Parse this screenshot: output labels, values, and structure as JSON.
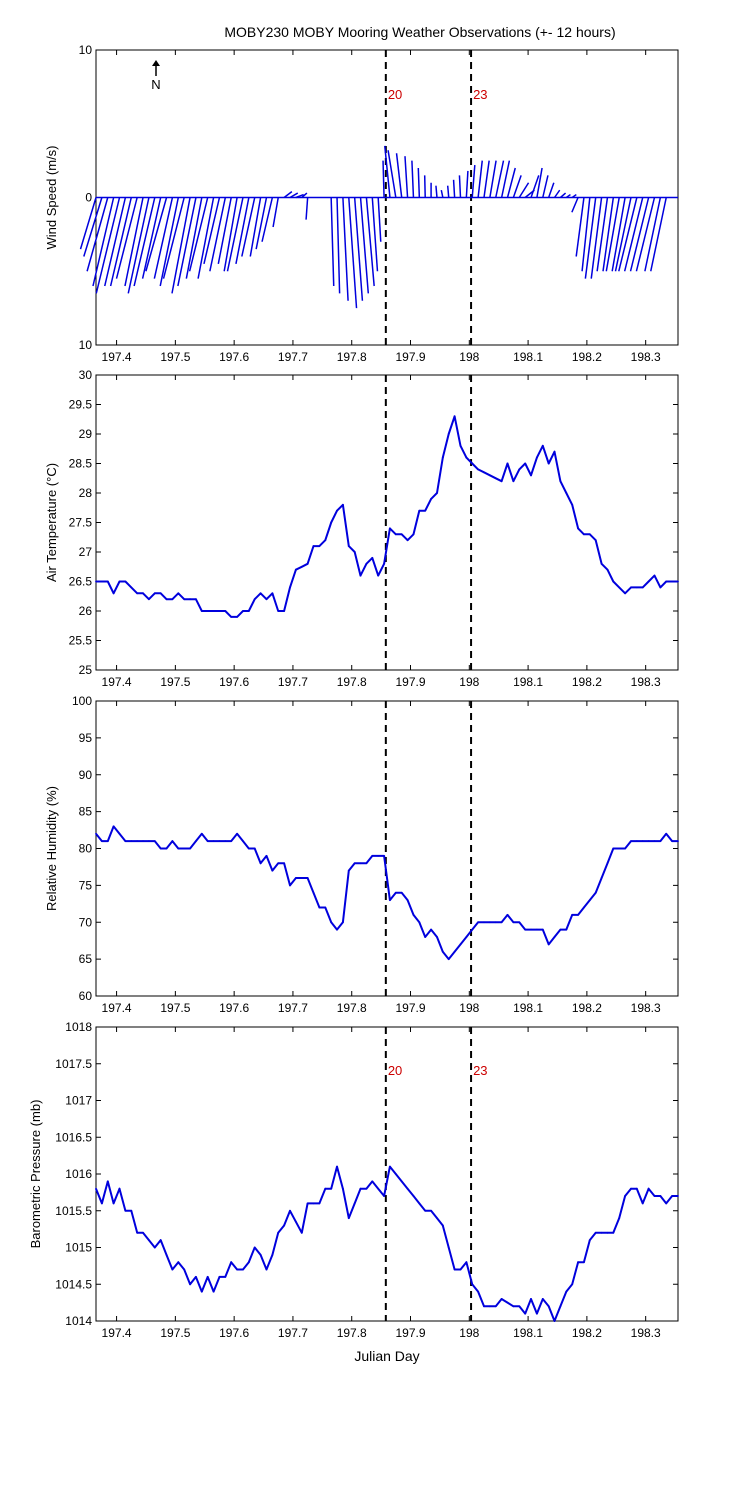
{
  "title": "MOBY230 MOBY Mooring Weather Observations (+- 12 hours)",
  "xlabel": "Julian Day",
  "x_ticks": [
    197.4,
    197.5,
    197.6,
    197.7,
    197.8,
    197.9,
    198,
    198.1,
    198.2,
    198.3
  ],
  "xlim": [
    197.365,
    198.355
  ],
  "markers": [
    {
      "x": 197.858,
      "label": "20"
    },
    {
      "x": 198.003,
      "label": "23"
    }
  ],
  "north_label": "N",
  "colors": {
    "line": "#0000dd",
    "marker_label": "#cc0000",
    "axis": "#000000"
  },
  "chart_data": [
    {
      "type": "vector",
      "title": "MOBY230 MOBY Mooring Weather Observations (+- 12 hours)",
      "ylabel": "Wind Speed (m/s)",
      "xlabel": "",
      "ylim": [
        -10,
        10
      ],
      "y_ticks": [
        10,
        0,
        10
      ],
      "series": [
        {
          "x": [
            197.365,
            197.375,
            197.385,
            197.395,
            197.405,
            197.415,
            197.425,
            197.435,
            197.445,
            197.455,
            197.465,
            197.475,
            197.485,
            197.495,
            197.505,
            197.515,
            197.525,
            197.535,
            197.545,
            197.555,
            197.565,
            197.575,
            197.585,
            197.595,
            197.605,
            197.615,
            197.625,
            197.635,
            197.645,
            197.655,
            197.665,
            197.675,
            197.685,
            197.695,
            197.705,
            197.715,
            197.725,
            197.765,
            197.775,
            197.785,
            197.795,
            197.805,
            197.815,
            197.825,
            197.835,
            197.845,
            197.855,
            197.865,
            197.875,
            197.885,
            197.895,
            197.905,
            197.915,
            197.925,
            197.935,
            197.945,
            197.955,
            197.965,
            197.975,
            197.985,
            197.995,
            198.005,
            198.015,
            198.025,
            198.035,
            198.045,
            198.055,
            198.065,
            198.075,
            198.085,
            198.095,
            198.105,
            198.115,
            198.125,
            198.135,
            198.145,
            198.155,
            198.165,
            198.175,
            198.185,
            198.195,
            198.205,
            198.215,
            198.225,
            198.235,
            198.245,
            198.255,
            198.265,
            198.275,
            198.285,
            198.295,
            198.305,
            198.315,
            198.325,
            198.335
          ],
          "u": [
            -3,
            -3.5,
            -4,
            -4,
            -4.5,
            -4,
            -4,
            -4,
            -3.5,
            -4,
            -4,
            -3.5,
            -4,
            -3.5,
            -3.5,
            -4,
            -3.5,
            -3.5,
            -3,
            -3.5,
            -3,
            -3,
            -3,
            -2.5,
            -2.5,
            -3,
            -2.5,
            -2.5,
            -2,
            -2,
            -2,
            -1,
            1.5,
            1.5,
            1.5,
            1,
            -0.3,
            0.5,
            0.5,
            1,
            1.5,
            1.5,
            1.5,
            1.5,
            1,
            0.5,
            -0.2,
            -1,
            -1.5,
            -1,
            -0.5,
            -0.3,
            -0.2,
            -0.1,
            0,
            -0.2,
            -0.3,
            -0.2,
            -0.2,
            -0.2,
            0.3,
            0.5,
            0.8,
            1,
            1.2,
            1.5,
            1.5,
            1.5,
            1.5,
            1.8,
            1.8,
            1.5,
            1,
            1,
            1,
            1,
            1,
            0.8,
            0.8,
            -1.2,
            -1.5,
            -1.5,
            -2,
            -2,
            -2,
            -2,
            -2.5,
            -2.5,
            -3,
            -3.5,
            -3.5,
            -3.5,
            -3.5,
            -3,
            -3
          ],
          "v": [
            -3.5,
            -4,
            -5,
            -6,
            -6.5,
            -6,
            -6,
            -5.5,
            -6,
            -6.5,
            -6,
            -5.5,
            -5,
            -5.5,
            -6,
            -5.5,
            -6.5,
            -6,
            -5.5,
            -5,
            -5.5,
            -4.5,
            -5,
            -4.5,
            -5,
            -5,
            -4.5,
            -4,
            -4,
            -3.5,
            -3,
            -2,
            0.4,
            0.3,
            0.2,
            0.3,
            -1.5,
            -6,
            -6.5,
            -7,
            -7.5,
            -7,
            -6.5,
            -6,
            -5,
            -3,
            2.5,
            3.5,
            3.2,
            3,
            2.8,
            2.5,
            2,
            1.5,
            1,
            0.8,
            0.5,
            0.8,
            1.2,
            1.5,
            1.8,
            2.2,
            2.5,
            2.5,
            2.5,
            2.5,
            2.5,
            2,
            1.5,
            1,
            0.5,
            1.5,
            2,
            1.5,
            1,
            0.5,
            0.3,
            0.2,
            0.2,
            -1,
            -4,
            -5,
            -5.5,
            -5.5,
            -5,
            -5,
            -5,
            -5,
            -5,
            -5,
            -5,
            -5,
            -5,
            -5,
            -5
          ]
        }
      ]
    },
    {
      "type": "line",
      "ylabel": "Air Temperature (°C)",
      "ylim": [
        25,
        30
      ],
      "y_ticks": [
        25,
        25.5,
        26,
        26.5,
        27,
        27.5,
        28,
        28.5,
        29,
        29.5,
        30
      ],
      "series": [
        {
          "x": [
            197.365,
            197.375,
            197.385,
            197.395,
            197.405,
            197.415,
            197.425,
            197.435,
            197.445,
            197.455,
            197.465,
            197.475,
            197.485,
            197.495,
            197.505,
            197.515,
            197.525,
            197.535,
            197.545,
            197.555,
            197.565,
            197.575,
            197.585,
            197.595,
            197.605,
            197.615,
            197.625,
            197.635,
            197.645,
            197.655,
            197.665,
            197.675,
            197.685,
            197.695,
            197.705,
            197.715,
            197.725,
            197.735,
            197.745,
            197.755,
            197.765,
            197.775,
            197.785,
            197.795,
            197.805,
            197.815,
            197.825,
            197.835,
            197.845,
            197.855,
            197.865,
            197.875,
            197.885,
            197.895,
            197.905,
            197.915,
            197.925,
            197.935,
            197.945,
            197.955,
            197.965,
            197.975,
            197.985,
            197.995,
            198.005,
            198.015,
            198.025,
            198.035,
            198.045,
            198.055,
            198.065,
            198.075,
            198.085,
            198.095,
            198.105,
            198.115,
            198.125,
            198.135,
            198.145,
            198.155,
            198.165,
            198.175,
            198.185,
            198.195,
            198.205,
            198.215,
            198.225,
            198.235,
            198.245,
            198.255,
            198.265,
            198.275,
            198.285,
            198.295,
            198.305,
            198.315,
            198.325,
            198.335,
            198.345,
            198.355
          ],
          "y": [
            26.5,
            26.5,
            26.5,
            26.3,
            26.5,
            26.5,
            26.4,
            26.3,
            26.3,
            26.2,
            26.3,
            26.3,
            26.2,
            26.2,
            26.3,
            26.2,
            26.2,
            26.2,
            26,
            26,
            26,
            26,
            26,
            25.9,
            25.9,
            26,
            26,
            26.2,
            26.3,
            26.2,
            26.3,
            26,
            26,
            26.4,
            26.7,
            26.75,
            26.8,
            27.1,
            27.1,
            27.2,
            27.5,
            27.7,
            27.8,
            27.1,
            27,
            26.6,
            26.8,
            26.9,
            26.6,
            26.8,
            27.4,
            27.3,
            27.3,
            27.2,
            27.3,
            27.7,
            27.7,
            27.9,
            28,
            28.6,
            29,
            29.3,
            28.8,
            28.6,
            28.5,
            28.4,
            28.35,
            28.3,
            28.25,
            28.2,
            28.5,
            28.2,
            28.4,
            28.5,
            28.3,
            28.6,
            28.8,
            28.5,
            28.7,
            28.2,
            28,
            27.8,
            27.4,
            27.3,
            27.3,
            27.2,
            26.8,
            26.7,
            26.5,
            26.4,
            26.3,
            26.4,
            26.4,
            26.4,
            26.5,
            26.6,
            26.4,
            26.5,
            26.5,
            26.5
          ]
        }
      ]
    },
    {
      "type": "line",
      "ylabel": "Relative Humidity (%)",
      "ylim": [
        60,
        100
      ],
      "y_ticks": [
        60,
        65,
        70,
        75,
        80,
        85,
        90,
        95,
        100
      ],
      "series": [
        {
          "x": [
            197.365,
            197.375,
            197.385,
            197.395,
            197.405,
            197.415,
            197.425,
            197.435,
            197.445,
            197.455,
            197.465,
            197.475,
            197.485,
            197.495,
            197.505,
            197.515,
            197.525,
            197.535,
            197.545,
            197.555,
            197.565,
            197.575,
            197.585,
            197.595,
            197.605,
            197.615,
            197.625,
            197.635,
            197.645,
            197.655,
            197.665,
            197.675,
            197.685,
            197.695,
            197.705,
            197.715,
            197.725,
            197.735,
            197.745,
            197.755,
            197.765,
            197.775,
            197.785,
            197.795,
            197.805,
            197.815,
            197.825,
            197.835,
            197.845,
            197.855,
            197.865,
            197.875,
            197.885,
            197.895,
            197.905,
            197.915,
            197.925,
            197.935,
            197.945,
            197.955,
            197.965,
            197.975,
            197.985,
            197.995,
            198.005,
            198.015,
            198.025,
            198.035,
            198.045,
            198.055,
            198.065,
            198.075,
            198.085,
            198.095,
            198.105,
            198.115,
            198.125,
            198.135,
            198.145,
            198.155,
            198.165,
            198.175,
            198.185,
            198.195,
            198.205,
            198.215,
            198.225,
            198.235,
            198.245,
            198.255,
            198.265,
            198.275,
            198.285,
            198.295,
            198.305,
            198.315,
            198.325,
            198.335,
            198.345,
            198.355
          ],
          "y": [
            82,
            81,
            81,
            83,
            82,
            81,
            81,
            81,
            81,
            81,
            81,
            80,
            80,
            81,
            80,
            80,
            80,
            81,
            82,
            81,
            81,
            81,
            81,
            81,
            82,
            81,
            80,
            80,
            78,
            79,
            77,
            78,
            78,
            75,
            76,
            76,
            76,
            74,
            72,
            72,
            70,
            69,
            70,
            77,
            78,
            78,
            78,
            79,
            79,
            79,
            73,
            74,
            74,
            73,
            71,
            70,
            68,
            69,
            68,
            66,
            65,
            66,
            67,
            68,
            69,
            70,
            70,
            70,
            70,
            70,
            71,
            70,
            70,
            69,
            69,
            69,
            69,
            67,
            68,
            69,
            69,
            71,
            71,
            72,
            73,
            74,
            76,
            78,
            80,
            80,
            80,
            81,
            81,
            81,
            81,
            81,
            81,
            82,
            81,
            81
          ]
        }
      ]
    },
    {
      "type": "line",
      "ylabel": "Barometric Pressure (mb)",
      "ylim": [
        1014,
        1018
      ],
      "y_ticks": [
        1014,
        1014.5,
        1015,
        1015.5,
        1016,
        1016.5,
        1017,
        1017.5,
        1018
      ],
      "series": [
        {
          "x": [
            197.365,
            197.375,
            197.385,
            197.395,
            197.405,
            197.415,
            197.425,
            197.435,
            197.445,
            197.455,
            197.465,
            197.475,
            197.485,
            197.495,
            197.505,
            197.515,
            197.525,
            197.535,
            197.545,
            197.555,
            197.565,
            197.575,
            197.585,
            197.595,
            197.605,
            197.615,
            197.625,
            197.635,
            197.645,
            197.655,
            197.665,
            197.675,
            197.685,
            197.695,
            197.705,
            197.715,
            197.725,
            197.735,
            197.745,
            197.755,
            197.765,
            197.775,
            197.785,
            197.795,
            197.805,
            197.815,
            197.825,
            197.835,
            197.845,
            197.855,
            197.865,
            197.875,
            197.885,
            197.895,
            197.905,
            197.915,
            197.925,
            197.935,
            197.945,
            197.955,
            197.965,
            197.975,
            197.985,
            197.995,
            198.005,
            198.015,
            198.025,
            198.035,
            198.045,
            198.055,
            198.065,
            198.075,
            198.085,
            198.095,
            198.105,
            198.115,
            198.125,
            198.135,
            198.145,
            198.155,
            198.165,
            198.175,
            198.185,
            198.195,
            198.205,
            198.215,
            198.225,
            198.235,
            198.245,
            198.255,
            198.265,
            198.275,
            198.285,
            198.295,
            198.305,
            198.315,
            198.325,
            198.335,
            198.345,
            198.355
          ],
          "y": [
            1015.8,
            1015.6,
            1015.9,
            1015.6,
            1015.8,
            1015.5,
            1015.5,
            1015.2,
            1015.2,
            1015.1,
            1015,
            1015.1,
            1014.9,
            1014.7,
            1014.8,
            1014.7,
            1014.5,
            1014.6,
            1014.4,
            1014.6,
            1014.4,
            1014.6,
            1014.6,
            1014.8,
            1014.7,
            1014.7,
            1014.8,
            1015,
            1014.9,
            1014.7,
            1014.9,
            1015.2,
            1015.3,
            1015.5,
            1015.35,
            1015.2,
            1015.6,
            1015.6,
            1015.6,
            1015.8,
            1015.8,
            1016.1,
            1015.8,
            1015.4,
            1015.6,
            1015.8,
            1015.8,
            1015.9,
            1015.8,
            1015.7,
            1016.1,
            1016,
            1015.9,
            1015.8,
            1015.7,
            1015.6,
            1015.5,
            1015.5,
            1015.4,
            1015.3,
            1015,
            1014.7,
            1014.7,
            1014.8,
            1014.5,
            1014.4,
            1014.2,
            1014.2,
            1014.2,
            1014.3,
            1014.25,
            1014.2,
            1014.2,
            1014.1,
            1014.3,
            1014.1,
            1014.3,
            1014.2,
            1014,
            1014.2,
            1014.4,
            1014.5,
            1014.8,
            1014.8,
            1015.1,
            1015.2,
            1015.2,
            1015.2,
            1015.2,
            1015.4,
            1015.7,
            1015.8,
            1015.8,
            1015.6,
            1015.8,
            1015.7,
            1015.7,
            1015.6,
            1015.7,
            1015.7
          ]
        }
      ]
    }
  ]
}
